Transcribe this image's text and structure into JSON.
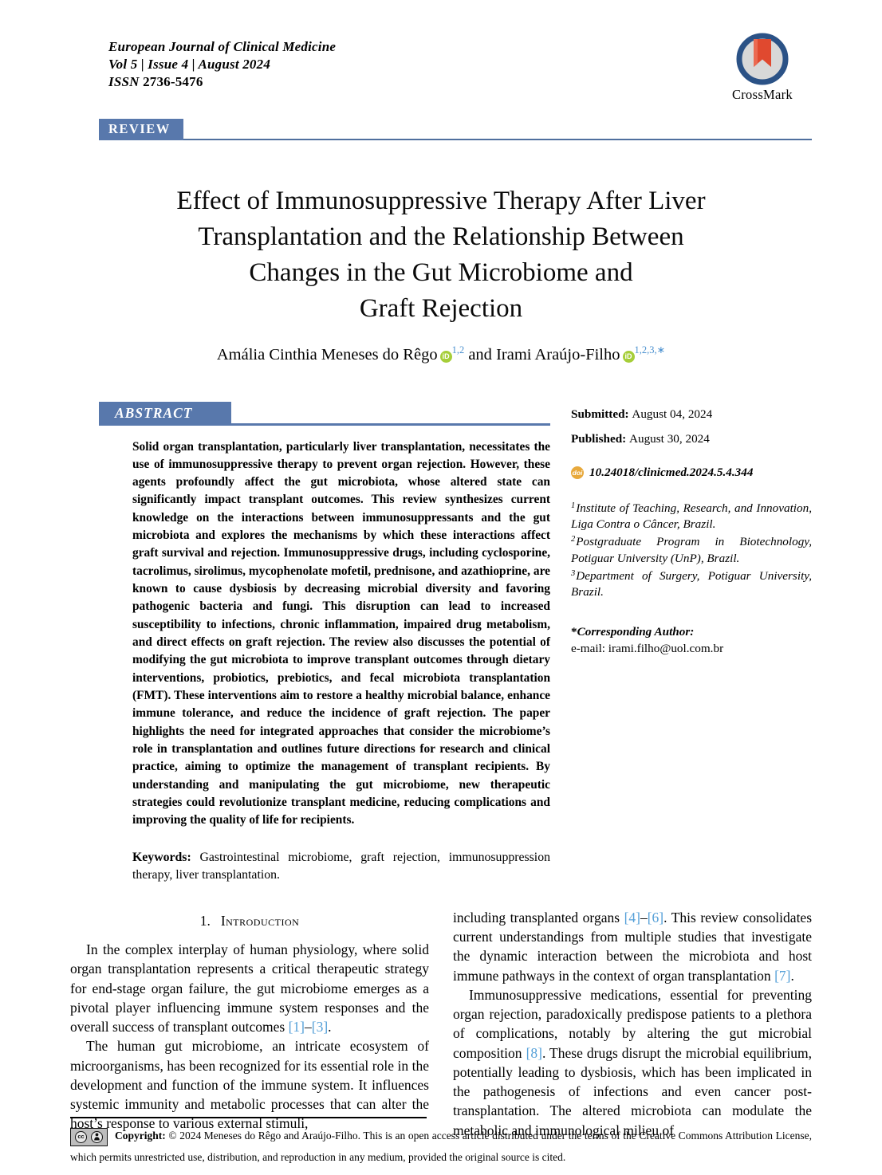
{
  "header": {
    "journal_name": "European Journal of Clinical Medicine",
    "issue_line": "Vol 5 | Issue 4 | August 2024",
    "issn_label": "ISSN ",
    "issn_value": "2736-5476",
    "badge": "REVIEW",
    "crossmark_label": "CrossMark"
  },
  "title": {
    "line1": "Effect of Immunosuppressive Therapy After Liver",
    "line2": "Transplantation and the Relationship Between",
    "line3": "Changes in the Gut Microbiome and",
    "line4": "Graft Rejection"
  },
  "authors": {
    "author1": "Amália Cinthia Meneses do Rêgo",
    "author1_sup": "1,2",
    "connector": " and ",
    "author2": "Irami Araújo-Filho",
    "author2_sup": "1,2,3,∗",
    "orcid_icon": "iD"
  },
  "abstract": {
    "heading": "ABSTRACT",
    "text": "Solid organ transplantation, particularly liver transplantation, necessitates the use of immunosuppressive therapy to prevent organ rejection. However, these agents profoundly affect the gut microbiota, whose altered state can significantly impact transplant outcomes. This review synthesizes current knowledge on the interactions between immunosuppressants and the gut microbiota and explores the mechanisms by which these interactions affect graft survival and rejection. Immunosuppressive drugs, including cyclosporine, tacrolimus, sirolimus, mycophenolate mofetil, prednisone, and azathioprine, are known to cause dysbiosis by decreasing microbial diversity and favoring pathogenic bacteria and fungi. This disruption can lead to increased susceptibility to infections, chronic inflammation, impaired drug metabolism, and direct effects on graft rejection. The review also discusses the potential of modifying the gut microbiota to improve transplant outcomes through dietary interventions, probiotics, prebiotics, and fecal microbiota transplantation (FMT). These interventions aim to restore a healthy microbial balance, enhance immune tolerance, and reduce the incidence of graft rejection. The paper highlights the need for integrated approaches that consider the microbiome’s role in transplantation and outlines future directions for research and clinical practice, aiming to optimize the management of transplant recipients. By understanding and manipulating the gut microbiome, new therapeutic strategies could revolutionize transplant medicine, reducing complications and improving the quality of life for recipients.",
    "keywords_label": "Keywords:",
    "keywords_text": " Gastrointestinal microbiome, graft rejection, immunosuppression therapy, liver transplantation."
  },
  "sidebar": {
    "submitted_label": "Submitted: ",
    "submitted_value": "August 04, 2024",
    "published_label": "Published: ",
    "published_value": "August 30, 2024",
    "doi_icon": "doi",
    "doi": "10.24018/clinicmed.2024.5.4.344",
    "affiliations": [
      {
        "sup": "1",
        "text": "Institute of Teaching, Research, and Innovation, Liga Contra o Câncer, Brazil."
      },
      {
        "sup": "2",
        "text": "Postgraduate Program in Biotechnology, Potiguar University (UnP), Brazil."
      },
      {
        "sup": "3",
        "text": "Department of Surgery, Potiguar University, Brazil."
      }
    ],
    "corresponding_star": "*",
    "corresponding_label": "Corresponding Author:",
    "corresponding_email": "e-mail: irami.filho@uol.com.br"
  },
  "introduction": {
    "heading_number": "1.",
    "heading_text": "Introduction",
    "left_col": {
      "p1_parts": [
        {
          "t": "In the complex interplay of human physiology, where solid organ transplantation represents a critical therapeutic strategy for end-stage organ failure, the gut microbiome emerges as a pivotal player influencing immune system responses and the overall success of transplant outcomes "
        },
        {
          "t": "[1]",
          "c": true
        },
        {
          "t": "–"
        },
        {
          "t": "[3]",
          "c": true
        },
        {
          "t": "."
        }
      ],
      "p2_parts": [
        {
          "t": "The human gut microbiome, an intricate ecosystem of microorganisms, has been recognized for its essential role in the development and function of the immune system. It influences systemic immunity and metabolic processes that can alter the host’s response to various external stimuli,"
        }
      ]
    },
    "right_col": {
      "p1_parts": [
        {
          "t": "including transplanted organs "
        },
        {
          "t": "[4]",
          "c": true
        },
        {
          "t": "–"
        },
        {
          "t": "[6]",
          "c": true
        },
        {
          "t": ". This review consolidates current understandings from multiple studies that investigate the dynamic interaction between the microbiota and host immune pathways in the context of organ transplantation "
        },
        {
          "t": "[7]",
          "c": true
        },
        {
          "t": "."
        }
      ],
      "p2_parts": [
        {
          "t": "Immunosuppressive medications, essential for preventing organ rejection, paradoxically predispose patients to a plethora of complications, notably by altering the gut microbial composition "
        },
        {
          "t": "[8]",
          "c": true
        },
        {
          "t": ". These drugs disrupt the microbial equilibrium, potentially leading to dysbiosis, which has been implicated in the pathogenesis of infections and even cancer post-transplantation. The altered microbiota can modulate the metabolic and immunological milieu of"
        }
      ]
    }
  },
  "footer": {
    "cc_icon_1": "cc",
    "copyright_label": "Copyright:",
    "copyright_text": " © 2024 Meneses do Rêgo and Araújo-Filho. This is an open access article distributed under the terms of the Creative Commons Attribution License, which permits unrestricted use, distribution, and reproduction in any medium, provided the original source is cited."
  },
  "colors": {
    "accent": "#5878ac",
    "rule": "#4f6f9e",
    "cite": "#55a0d8",
    "sup": "#4a90cf",
    "orcid": "#a6ce39",
    "doi": "#e8a93c",
    "cm-ring": "#2b5286",
    "cm-inner": "#d8d8d8",
    "cm-ribbon": "#e0492f"
  }
}
